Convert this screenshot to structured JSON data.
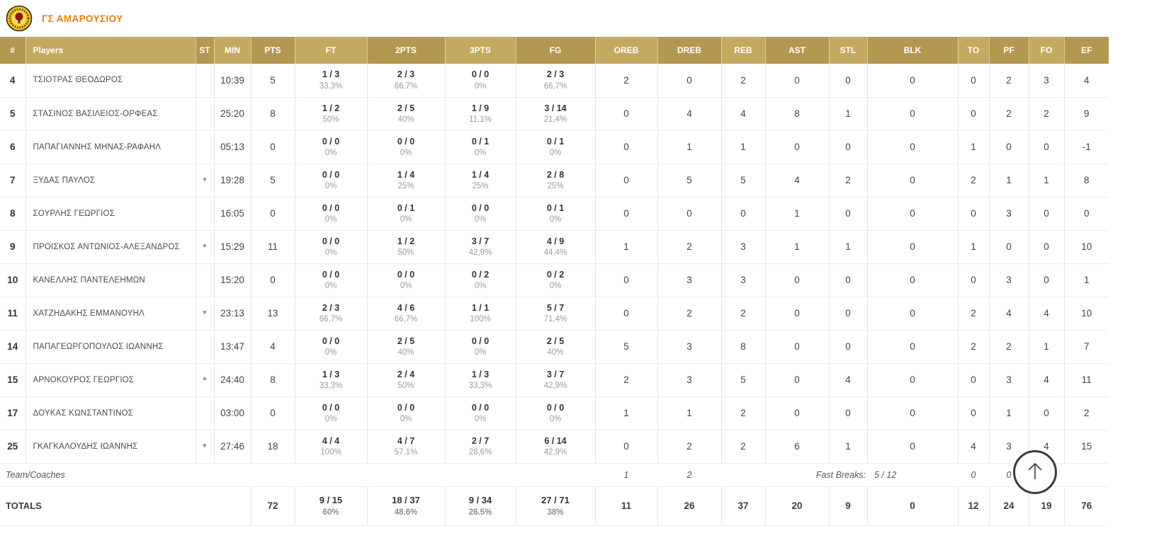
{
  "team": {
    "name": "ΓΣ ΑΜΑΡΟΥΣΙΟΥ"
  },
  "colors": {
    "accent_orange": "#ed7d05",
    "header_gold_dark": "#b3994f",
    "header_gold_light": "#c3aa61",
    "logo_yellow": "#f2c31d",
    "logo_maroon": "#8a1a10"
  },
  "icons": {
    "team_logo": "team-crest-logo",
    "scroll_top": "arrow-up"
  },
  "table": {
    "columns": [
      "#",
      "Players",
      "ST",
      "MIN",
      "PTS",
      "FT",
      "2PTS",
      "3PTS",
      "FG",
      "OREB",
      "DREB",
      "REB",
      "AST",
      "STL",
      "BLK",
      "TO",
      "PF",
      "FO",
      "EF"
    ],
    "players": [
      {
        "num": "4",
        "name": "ΤΣΙΟΤΡΑΣ ΘΕΟΔΩΡΟΣ",
        "st": "",
        "min": "10:39",
        "pts": "5",
        "ft": "1 / 3",
        "ft_pct": "33,3%",
        "p2": "2 / 3",
        "p2_pct": "66,7%",
        "p3": "0 / 0",
        "p3_pct": "0%",
        "fg": "2 / 3",
        "fg_pct": "66,7%",
        "oreb": "2",
        "dreb": "0",
        "reb": "2",
        "ast": "0",
        "stl": "0",
        "blk": "0",
        "to": "0",
        "pf": "2",
        "fo": "3",
        "ef": "4"
      },
      {
        "num": "5",
        "name": "ΣΤΑΣΙΝΟΣ ΒΑΣΙΛΕΙΟΣ-ΟΡΦΕΑΣ",
        "st": "",
        "min": "25:20",
        "pts": "8",
        "ft": "1 / 2",
        "ft_pct": "50%",
        "p2": "2 / 5",
        "p2_pct": "40%",
        "p3": "1 / 9",
        "p3_pct": "11,1%",
        "fg": "3 / 14",
        "fg_pct": "21,4%",
        "oreb": "0",
        "dreb": "4",
        "reb": "4",
        "ast": "8",
        "stl": "1",
        "blk": "0",
        "to": "0",
        "pf": "2",
        "fo": "2",
        "ef": "9"
      },
      {
        "num": "6",
        "name": "ΠΑΠΑΓΙΑΝΝΗΣ ΜΗΝΑΣ-ΡΑΦΑΗΛ",
        "st": "",
        "min": "05:13",
        "pts": "0",
        "ft": "0 / 0",
        "ft_pct": "0%",
        "p2": "0 / 0",
        "p2_pct": "0%",
        "p3": "0 / 1",
        "p3_pct": "0%",
        "fg": "0 / 1",
        "fg_pct": "0%",
        "oreb": "0",
        "dreb": "1",
        "reb": "1",
        "ast": "0",
        "stl": "0",
        "blk": "0",
        "to": "1",
        "pf": "0",
        "fo": "0",
        "ef": "-1"
      },
      {
        "num": "7",
        "name": "ΞΥΔΑΣ ΠΑΥΛΟΣ",
        "st": "*",
        "min": "19:28",
        "pts": "5",
        "ft": "0 / 0",
        "ft_pct": "0%",
        "p2": "1 / 4",
        "p2_pct": "25%",
        "p3": "1 / 4",
        "p3_pct": "25%",
        "fg": "2 / 8",
        "fg_pct": "25%",
        "oreb": "0",
        "dreb": "5",
        "reb": "5",
        "ast": "4",
        "stl": "2",
        "blk": "0",
        "to": "2",
        "pf": "1",
        "fo": "1",
        "ef": "8"
      },
      {
        "num": "8",
        "name": "ΣΟΥΡΛΗΣ ΓΕΩΡΓΙΟΣ",
        "st": "",
        "min": "16:05",
        "pts": "0",
        "ft": "0 / 0",
        "ft_pct": "0%",
        "p2": "0 / 1",
        "p2_pct": "0%",
        "p3": "0 / 0",
        "p3_pct": "0%",
        "fg": "0 / 1",
        "fg_pct": "0%",
        "oreb": "0",
        "dreb": "0",
        "reb": "0",
        "ast": "1",
        "stl": "0",
        "blk": "0",
        "to": "0",
        "pf": "3",
        "fo": "0",
        "ef": "0"
      },
      {
        "num": "9",
        "name": "ΠΡΟΙΣΚΟΣ ΑΝΤΩΝΙΟΣ-ΑΛΕΞΑΝΔΡΟΣ",
        "st": "*",
        "min": "15:29",
        "pts": "11",
        "ft": "0 / 0",
        "ft_pct": "0%",
        "p2": "1 / 2",
        "p2_pct": "50%",
        "p3": "3 / 7",
        "p3_pct": "42,9%",
        "fg": "4 / 9",
        "fg_pct": "44,4%",
        "oreb": "1",
        "dreb": "2",
        "reb": "3",
        "ast": "1",
        "stl": "1",
        "blk": "0",
        "to": "1",
        "pf": "0",
        "fo": "0",
        "ef": "10"
      },
      {
        "num": "10",
        "name": "ΚΑΝΕΛΛΗΣ ΠΑΝΤΕΛΕΗΜΩΝ",
        "st": "",
        "min": "15:20",
        "pts": "0",
        "ft": "0 / 0",
        "ft_pct": "0%",
        "p2": "0 / 0",
        "p2_pct": "0%",
        "p3": "0 / 2",
        "p3_pct": "0%",
        "fg": "0 / 2",
        "fg_pct": "0%",
        "oreb": "0",
        "dreb": "3",
        "reb": "3",
        "ast": "0",
        "stl": "0",
        "blk": "0",
        "to": "0",
        "pf": "3",
        "fo": "0",
        "ef": "1"
      },
      {
        "num": "11",
        "name": "ΧΑΤΖΗΔΑΚΗΣ ΕΜΜΑΝΟΥΗΛ",
        "st": "*",
        "min": "23:13",
        "pts": "13",
        "ft": "2 / 3",
        "ft_pct": "66,7%",
        "p2": "4 / 6",
        "p2_pct": "66,7%",
        "p3": "1 / 1",
        "p3_pct": "100%",
        "fg": "5 / 7",
        "fg_pct": "71,4%",
        "oreb": "0",
        "dreb": "2",
        "reb": "2",
        "ast": "0",
        "stl": "0",
        "blk": "0",
        "to": "2",
        "pf": "4",
        "fo": "4",
        "ef": "10"
      },
      {
        "num": "14",
        "name": "ΠΑΠΑΓΕΩΡΓΟΠΟΥΛΟΣ ΙΩΑΝΝΗΣ",
        "st": "",
        "min": "13:47",
        "pts": "4",
        "ft": "0 / 0",
        "ft_pct": "0%",
        "p2": "2 / 5",
        "p2_pct": "40%",
        "p3": "0 / 0",
        "p3_pct": "0%",
        "fg": "2 / 5",
        "fg_pct": "40%",
        "oreb": "5",
        "dreb": "3",
        "reb": "8",
        "ast": "0",
        "stl": "0",
        "blk": "0",
        "to": "2",
        "pf": "2",
        "fo": "1",
        "ef": "7"
      },
      {
        "num": "15",
        "name": "ΑΡΝΟΚΟΥΡΟΣ ΓΕΩΡΓΙΟΣ",
        "st": "*",
        "min": "24:40",
        "pts": "8",
        "ft": "1 / 3",
        "ft_pct": "33,3%",
        "p2": "2 / 4",
        "p2_pct": "50%",
        "p3": "1 / 3",
        "p3_pct": "33,3%",
        "fg": "3 / 7",
        "fg_pct": "42,9%",
        "oreb": "2",
        "dreb": "3",
        "reb": "5",
        "ast": "0",
        "stl": "4",
        "blk": "0",
        "to": "0",
        "pf": "3",
        "fo": "4",
        "ef": "11"
      },
      {
        "num": "17",
        "name": "ΔΟΥΚΑΣ ΚΩΝΣΤΑΝΤΙΝΟΣ",
        "st": "",
        "min": "03:00",
        "pts": "0",
        "ft": "0 / 0",
        "ft_pct": "0%",
        "p2": "0 / 0",
        "p2_pct": "0%",
        "p3": "0 / 0",
        "p3_pct": "0%",
        "fg": "0 / 0",
        "fg_pct": "0%",
        "oreb": "1",
        "dreb": "1",
        "reb": "2",
        "ast": "0",
        "stl": "0",
        "blk": "0",
        "to": "0",
        "pf": "1",
        "fo": "0",
        "ef": "2"
      },
      {
        "num": "25",
        "name": "ΓΚΑΓΚΑΛΟΥΔΗΣ ΙΩΑΝΝΗΣ",
        "st": "*",
        "min": "27:46",
        "pts": "18",
        "ft": "4 / 4",
        "ft_pct": "100%",
        "p2": "4 / 7",
        "p2_pct": "57,1%",
        "p3": "2 / 7",
        "p3_pct": "28,6%",
        "fg": "6 / 14",
        "fg_pct": "42,9%",
        "oreb": "0",
        "dreb": "2",
        "reb": "2",
        "ast": "6",
        "stl": "1",
        "blk": "0",
        "to": "4",
        "pf": "3",
        "fo": "4",
        "ef": "15"
      }
    ],
    "team_row": {
      "label": "Team/Coaches",
      "oreb": "1",
      "dreb": "2",
      "fast_breaks_label": "Fast Breaks:",
      "fast_breaks_value": "5 / 12",
      "to": "0",
      "pf": "0"
    },
    "totals": {
      "label": "TOTALS",
      "pts": "72",
      "ft": "9 / 15",
      "ft_pct": "60%",
      "p2": "18 / 37",
      "p2_pct": "48.6%",
      "p3": "9 / 34",
      "p3_pct": "26.5%",
      "fg": "27 / 71",
      "fg_pct": "38%",
      "oreb": "11",
      "dreb": "26",
      "reb": "37",
      "ast": "20",
      "stl": "9",
      "blk": "0",
      "to": "12",
      "pf": "24",
      "fo": "19",
      "ef": "76"
    }
  }
}
